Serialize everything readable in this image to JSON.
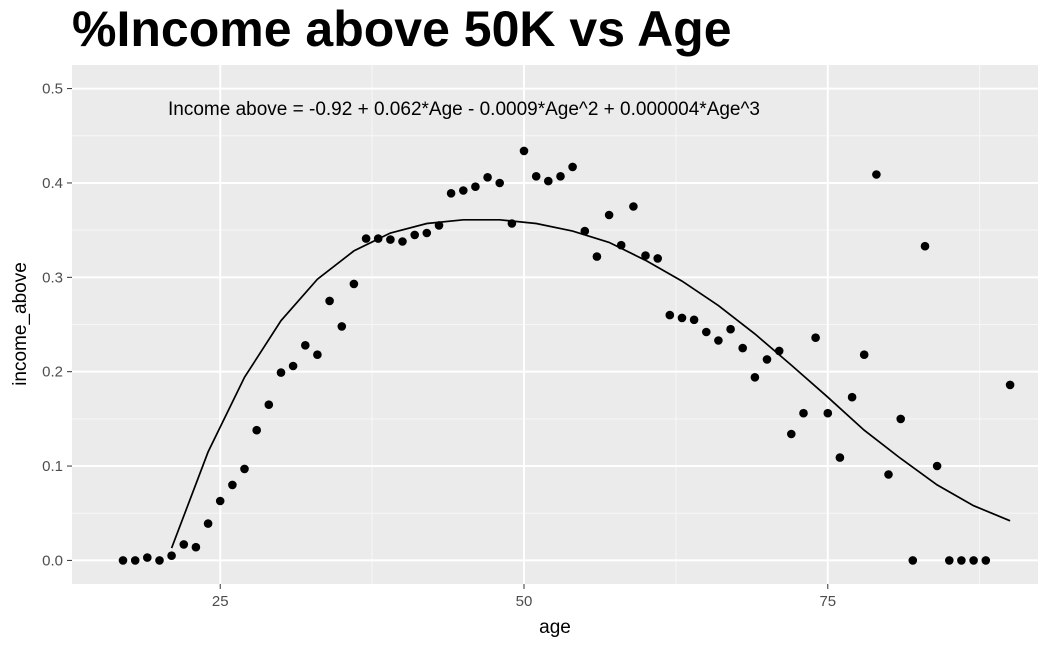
{
  "chart_data": {
    "type": "scatter",
    "title": "%Income above 50K vs Age",
    "xlabel": "age",
    "ylabel": "income_above",
    "annotation": "Income above = -0.92 + 0.062*Age - 0.0009*Age^2 + 0.000004*Age^3",
    "xlim": [
      12.8,
      92.3
    ],
    "ylim": [
      -0.025,
      0.525
    ],
    "x_ticks": [
      25,
      50,
      75
    ],
    "x_tick_labels": [
      "25",
      "50",
      "75"
    ],
    "y_ticks": [
      0.0,
      0.1,
      0.2,
      0.3,
      0.4,
      0.5
    ],
    "y_tick_labels": [
      "0.0",
      "0.1",
      "0.2",
      "0.3",
      "0.4",
      "0.5"
    ],
    "grid": true,
    "series": [
      {
        "points": [
          [
            17,
            0.0
          ],
          [
            18,
            0.0
          ],
          [
            19,
            0.003
          ],
          [
            20,
            0.0
          ],
          [
            21,
            0.005
          ],
          [
            22,
            0.017
          ],
          [
            23,
            0.014
          ],
          [
            24,
            0.039
          ],
          [
            25,
            0.063
          ],
          [
            26,
            0.08
          ],
          [
            27,
            0.097
          ],
          [
            28,
            0.138
          ],
          [
            29,
            0.165
          ],
          [
            30,
            0.199
          ],
          [
            31,
            0.206
          ],
          [
            32,
            0.228
          ],
          [
            33,
            0.218
          ],
          [
            34,
            0.275
          ],
          [
            35,
            0.248
          ],
          [
            36,
            0.293
          ],
          [
            37,
            0.341
          ],
          [
            38,
            0.341
          ],
          [
            39,
            0.34
          ],
          [
            40,
            0.338
          ],
          [
            41,
            0.345
          ],
          [
            42,
            0.347
          ],
          [
            43,
            0.355
          ],
          [
            44,
            0.389
          ],
          [
            45,
            0.392
          ],
          [
            46,
            0.396
          ],
          [
            47,
            0.406
          ],
          [
            48,
            0.4
          ],
          [
            49,
            0.357
          ],
          [
            50,
            0.434
          ],
          [
            51,
            0.407
          ],
          [
            52,
            0.402
          ],
          [
            53,
            0.407
          ],
          [
            54,
            0.417
          ],
          [
            55,
            0.349
          ],
          [
            56,
            0.322
          ],
          [
            57,
            0.366
          ],
          [
            58,
            0.334
          ],
          [
            59,
            0.375
          ],
          [
            60,
            0.323
          ],
          [
            61,
            0.32
          ],
          [
            62,
            0.26
          ],
          [
            63,
            0.257
          ],
          [
            64,
            0.255
          ],
          [
            65,
            0.242
          ],
          [
            66,
            0.233
          ],
          [
            67,
            0.245
          ],
          [
            68,
            0.225
          ],
          [
            69,
            0.194
          ],
          [
            70,
            0.213
          ],
          [
            71,
            0.222
          ],
          [
            72,
            0.134
          ],
          [
            73,
            0.156
          ],
          [
            74,
            0.236
          ],
          [
            75,
            0.156
          ],
          [
            76,
            0.109
          ],
          [
            77,
            0.173
          ],
          [
            78,
            0.218
          ],
          [
            79,
            0.409
          ],
          [
            80,
            0.091
          ],
          [
            81,
            0.15
          ],
          [
            82,
            0.0
          ],
          [
            83,
            0.333
          ],
          [
            84,
            0.1
          ],
          [
            85,
            0.0
          ],
          [
            86,
            0.0
          ],
          [
            87,
            0.0
          ],
          [
            88,
            0.0
          ],
          [
            90,
            0.186
          ]
        ]
      }
    ],
    "fit_curve": {
      "points": [
        [
          21,
          0.013
        ],
        [
          24,
          0.115
        ],
        [
          27,
          0.194
        ],
        [
          30,
          0.254
        ],
        [
          33,
          0.298
        ],
        [
          36,
          0.328
        ],
        [
          39,
          0.347
        ],
        [
          42,
          0.357
        ],
        [
          45,
          0.361
        ],
        [
          48,
          0.361
        ],
        [
          51,
          0.357
        ],
        [
          54,
          0.349
        ],
        [
          57,
          0.337
        ],
        [
          60,
          0.318
        ],
        [
          63,
          0.296
        ],
        [
          66,
          0.27
        ],
        [
          69,
          0.24
        ],
        [
          72,
          0.207
        ],
        [
          75,
          0.173
        ],
        [
          78,
          0.138
        ],
        [
          81,
          0.108
        ],
        [
          84,
          0.08
        ],
        [
          87,
          0.058
        ],
        [
          90,
          0.042
        ]
      ]
    }
  }
}
